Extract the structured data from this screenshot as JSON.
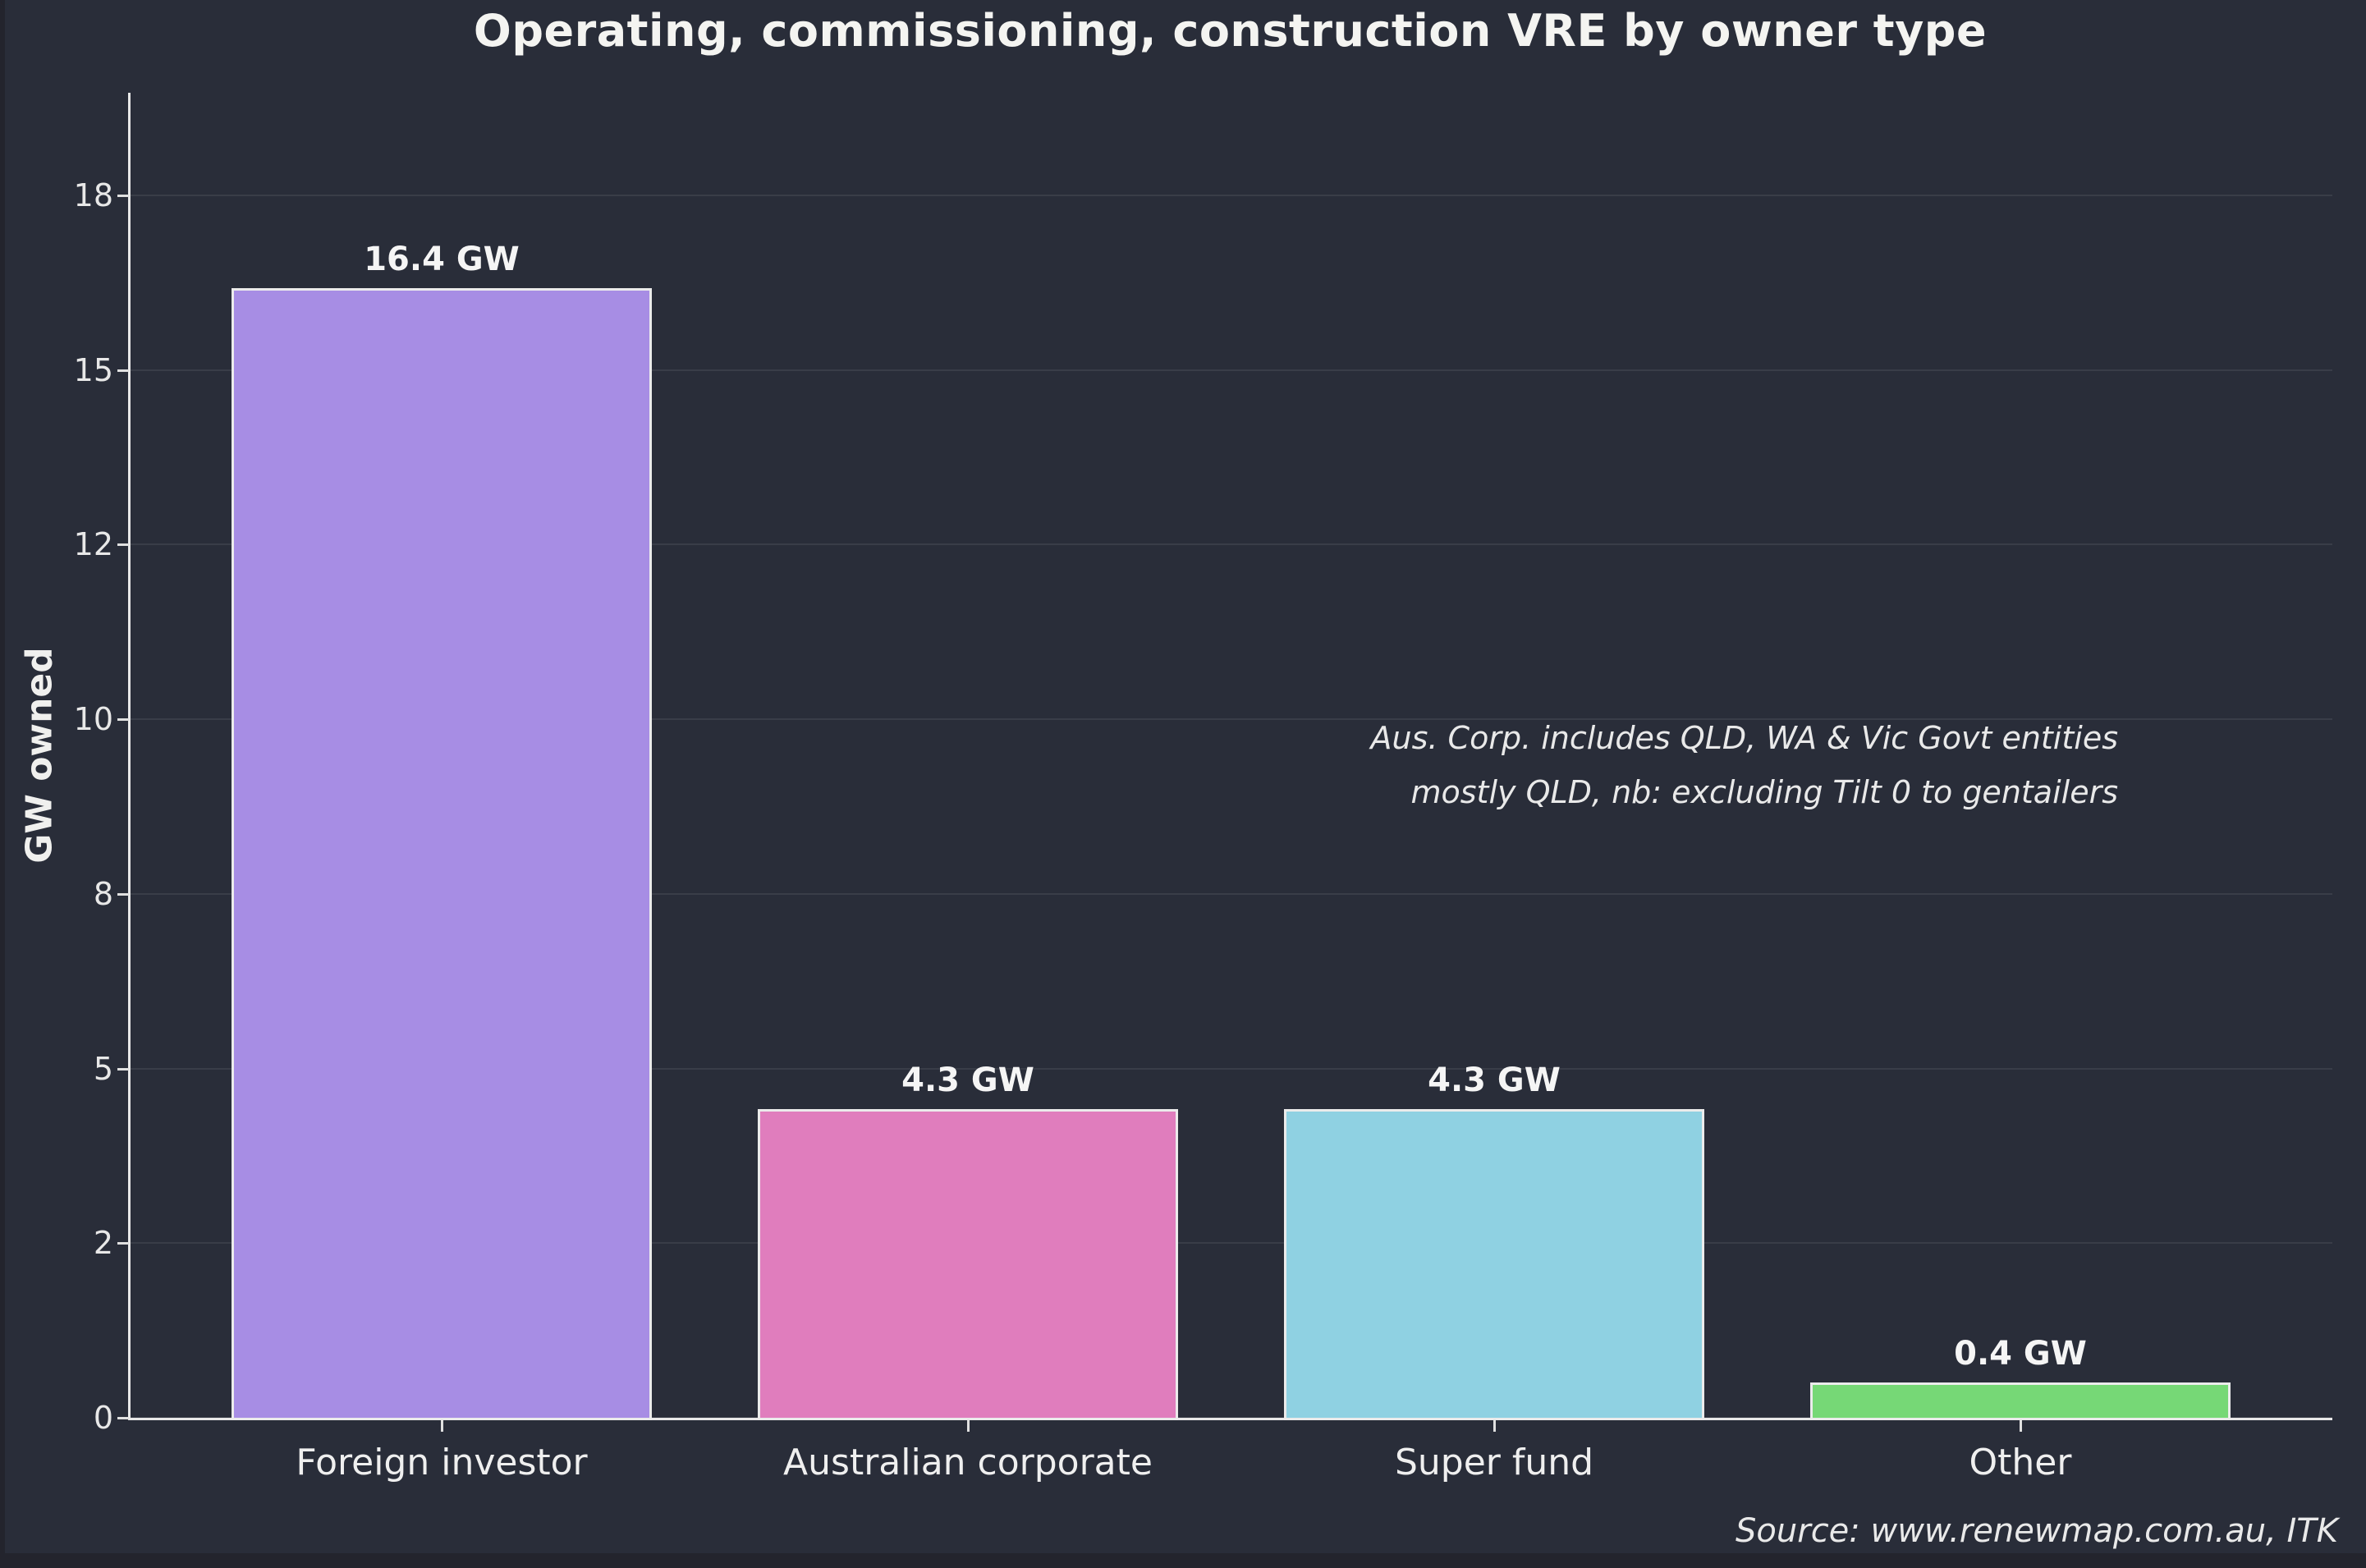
{
  "page": {
    "background": "#23242d",
    "chart_background": "#292d39"
  },
  "colors": {
    "axis": "#e8e8e8",
    "grid": "rgba(255,255,255,0.08)",
    "text": "#f2f2f2",
    "bar_edge": "#ebebeb"
  },
  "chart_data": {
    "type": "bar",
    "title": "Operating, commissioning, construction VRE by owner type",
    "ylabel": "GW owned",
    "xlabel": "",
    "categories": [
      "Foreign investor",
      "Australian corporate",
      "Super fund",
      "Other"
    ],
    "values": [
      16.4,
      4.3,
      4.3,
      0.4
    ],
    "value_labels": [
      "16.4 GW",
      "4.3 GW",
      "4.3 GW",
      "0.4 GW"
    ],
    "bar_colors": [
      "#a78de4",
      "#e07dbd",
      "#8fd1e2",
      "#76d876"
    ],
    "yticks": [
      0,
      2,
      5,
      8,
      10,
      12,
      15,
      18
    ],
    "ylim": [
      0,
      19.4
    ],
    "grid": true,
    "legend": "none",
    "annotation": {
      "lines": [
        "Aus. Corp. includes QLD, WA & Vic Govt entities",
        "mostly QLD, nb: excluding Tilt 0 to gentailers"
      ]
    },
    "source": "Source: www.renewmap.com.au, ITK"
  }
}
